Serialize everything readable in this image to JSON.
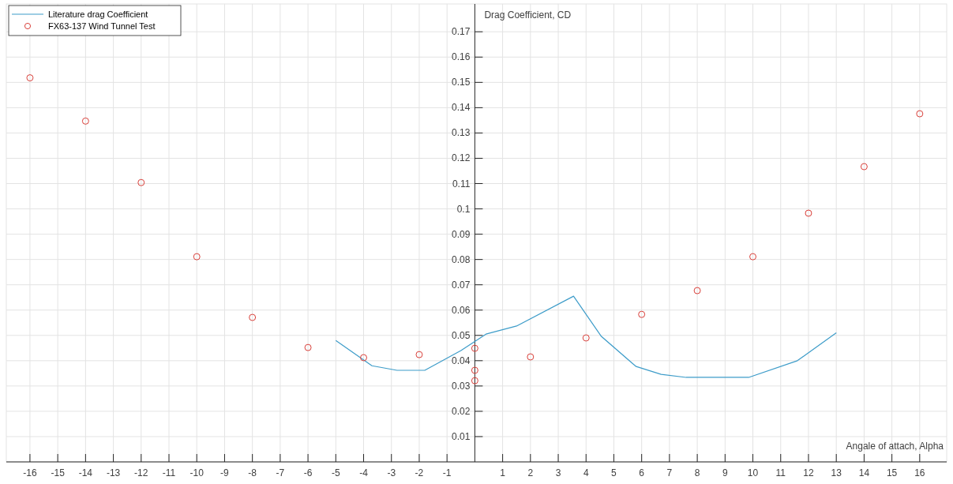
{
  "chart_data": {
    "type": "line",
    "xlabel": "Angale of attach, Alpha",
    "ylabel": "Drag Coefficient, CD",
    "xlim": [
      -16.85,
      16.97
    ],
    "ylim": [
      0,
      0.181
    ],
    "xticks": [
      -16,
      -15,
      -14,
      -13,
      -12,
      -11,
      -10,
      -9,
      -8,
      -7,
      -6,
      -5,
      -4,
      -3,
      -2,
      -1,
      1,
      2,
      3,
      4,
      5,
      6,
      7,
      8,
      9,
      10,
      11,
      12,
      13,
      14,
      15,
      16
    ],
    "yticks": [
      0.01,
      0.02,
      0.03,
      0.04,
      0.05,
      0.06,
      0.07,
      0.08,
      0.09,
      0.1,
      0.11,
      0.12,
      0.13,
      0.14,
      0.15,
      0.16,
      0.17
    ],
    "grid": true,
    "legend": "top left",
    "series": [
      {
        "name": "Literature drag Coefficient",
        "color": "#3d9cc9",
        "marker": "none",
        "line_style": "solid",
        "x": [
          -5,
          -3.7,
          -2.8,
          -1.8,
          -0.5,
          0.4,
          1.5,
          3.55,
          4.55,
          5.8,
          6.7,
          7.6,
          9.85,
          11.6,
          13
        ],
        "values": [
          0.048,
          0.038,
          0.0362,
          0.0362,
          0.044,
          0.0505,
          0.0537,
          0.0655,
          0.0496,
          0.0377,
          0.0346,
          0.0334,
          0.0334,
          0.04,
          0.051
        ]
      },
      {
        "name": "FX63-137 Wind Tunnel Test",
        "type": "scatter",
        "color": "#d9403a",
        "marker": "circle",
        "x": [
          -16,
          -14,
          -12,
          -10,
          -8,
          -6,
          -4,
          -2,
          0,
          0,
          0,
          2,
          4,
          6,
          8,
          10,
          12,
          14,
          16
        ],
        "values": [
          0.1518,
          0.1347,
          0.1104,
          0.0811,
          0.0571,
          0.0452,
          0.0412,
          0.0424,
          0.0449,
          0.0362,
          0.0321,
          0.0415,
          0.049,
          0.0583,
          0.0677,
          0.0811,
          0.0983,
          0.1167,
          0.1376
        ]
      }
    ]
  }
}
